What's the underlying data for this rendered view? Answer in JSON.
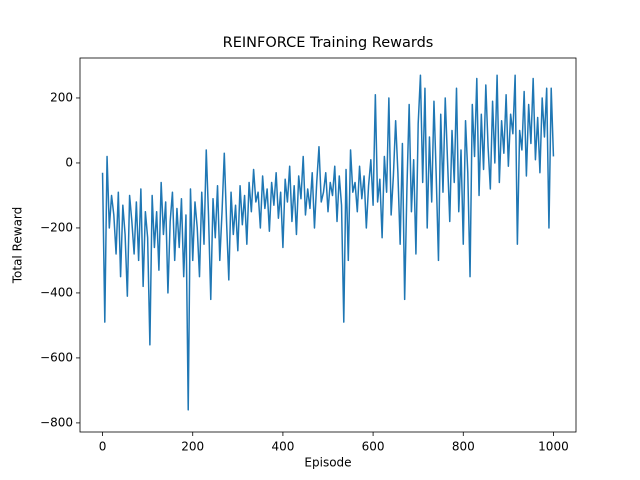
{
  "chart_data": {
    "type": "line",
    "title": "REINFORCE Training Rewards",
    "x_label": "Episode",
    "y_label": "Total Reward",
    "color": "#1f77b4",
    "x": [
      0,
      5,
      10,
      15,
      20,
      25,
      30,
      35,
      40,
      45,
      50,
      55,
      60,
      65,
      70,
      75,
      80,
      85,
      90,
      95,
      100,
      105,
      110,
      115,
      120,
      125,
      130,
      135,
      140,
      145,
      150,
      155,
      160,
      165,
      170,
      175,
      180,
      185,
      190,
      195,
      200,
      205,
      210,
      215,
      220,
      225,
      230,
      235,
      240,
      245,
      250,
      255,
      260,
      265,
      270,
      275,
      280,
      285,
      290,
      295,
      300,
      305,
      310,
      315,
      320,
      325,
      330,
      335,
      340,
      345,
      350,
      355,
      360,
      365,
      370,
      375,
      380,
      385,
      390,
      395,
      400,
      405,
      410,
      415,
      420,
      425,
      430,
      435,
      440,
      445,
      450,
      455,
      460,
      465,
      470,
      475,
      480,
      485,
      490,
      495,
      500,
      505,
      510,
      515,
      520,
      525,
      530,
      535,
      540,
      545,
      550,
      555,
      560,
      565,
      570,
      575,
      580,
      585,
      590,
      595,
      600,
      605,
      610,
      615,
      620,
      625,
      630,
      635,
      640,
      645,
      650,
      655,
      660,
      665,
      670,
      675,
      680,
      685,
      690,
      695,
      700,
      705,
      710,
      715,
      720,
      725,
      730,
      735,
      740,
      745,
      750,
      755,
      760,
      765,
      770,
      775,
      780,
      785,
      790,
      795,
      800,
      805,
      810,
      815,
      820,
      825,
      830,
      835,
      840,
      845,
      850,
      855,
      860,
      865,
      870,
      875,
      880,
      885,
      890,
      895,
      900,
      905,
      910,
      915,
      920,
      925,
      930,
      935,
      940,
      945,
      950,
      955,
      960,
      965,
      970,
      975,
      980,
      985,
      990,
      995,
      1000
    ],
    "values": [
      -30,
      -490,
      20,
      -200,
      -100,
      -160,
      -280,
      -90,
      -350,
      -130,
      -220,
      -410,
      -100,
      -180,
      -280,
      -120,
      -300,
      -80,
      -380,
      -150,
      -230,
      -560,
      -100,
      -260,
      -150,
      -330,
      -60,
      -220,
      -120,
      -400,
      -180,
      -90,
      -300,
      -140,
      -260,
      -110,
      -350,
      -160,
      -760,
      -80,
      -300,
      -120,
      -200,
      -350,
      -90,
      -250,
      40,
      -160,
      -420,
      -110,
      -230,
      -70,
      -300,
      -150,
      30,
      -180,
      -360,
      -90,
      -220,
      -130,
      -270,
      -70,
      -190,
      -100,
      -250,
      -60,
      -150,
      -20,
      -120,
      -90,
      -200,
      -40,
      -140,
      -80,
      -210,
      -60,
      -130,
      -30,
      -170,
      -90,
      -260,
      -50,
      -120,
      -10,
      -180,
      -70,
      -220,
      -40,
      -110,
      20,
      -160,
      -80,
      -140,
      -30,
      -200,
      -60,
      50,
      -120,
      -90,
      -30,
      -150,
      -60,
      -100,
      -10,
      -180,
      -40,
      -130,
      -490,
      -20,
      -300,
      40,
      -90,
      -60,
      -150,
      -10,
      -110,
      -40,
      -200,
      -70,
      10,
      -130,
      210,
      -120,
      -50,
      -230,
      20,
      -90,
      200,
      -160,
      -40,
      130,
      -30,
      -250,
      60,
      -420,
      -80,
      180,
      -150,
      10,
      -280,
      120,
      270,
      -60,
      230,
      -200,
      80,
      -120,
      190,
      -40,
      -300,
      150,
      -90,
      200,
      10,
      -180,
      100,
      -60,
      230,
      -150,
      40,
      -250,
      130,
      -30,
      -350,
      180,
      20,
      260,
      -100,
      150,
      -20,
      240,
      50,
      -80,
      190,
      0,
      270,
      -60,
      130,
      30,
      210,
      -10,
      150,
      90,
      270,
      -250,
      100,
      40,
      220,
      -40,
      180,
      60,
      260,
      10,
      140,
      -30,
      200,
      80,
      230,
      -200,
      230,
      20
    ],
    "xlim": [
      -50,
      1050
    ],
    "xticks": [
      0,
      200,
      400,
      600,
      800,
      1000
    ],
    "ylim": [
      -828,
      323
    ],
    "yticks": [
      {
        "value": -800,
        "label": "−800"
      },
      {
        "value": -600,
        "label": "−600"
      },
      {
        "value": -400,
        "label": "−400"
      },
      {
        "value": -200,
        "label": "−200"
      },
      0,
      200
    ]
  }
}
